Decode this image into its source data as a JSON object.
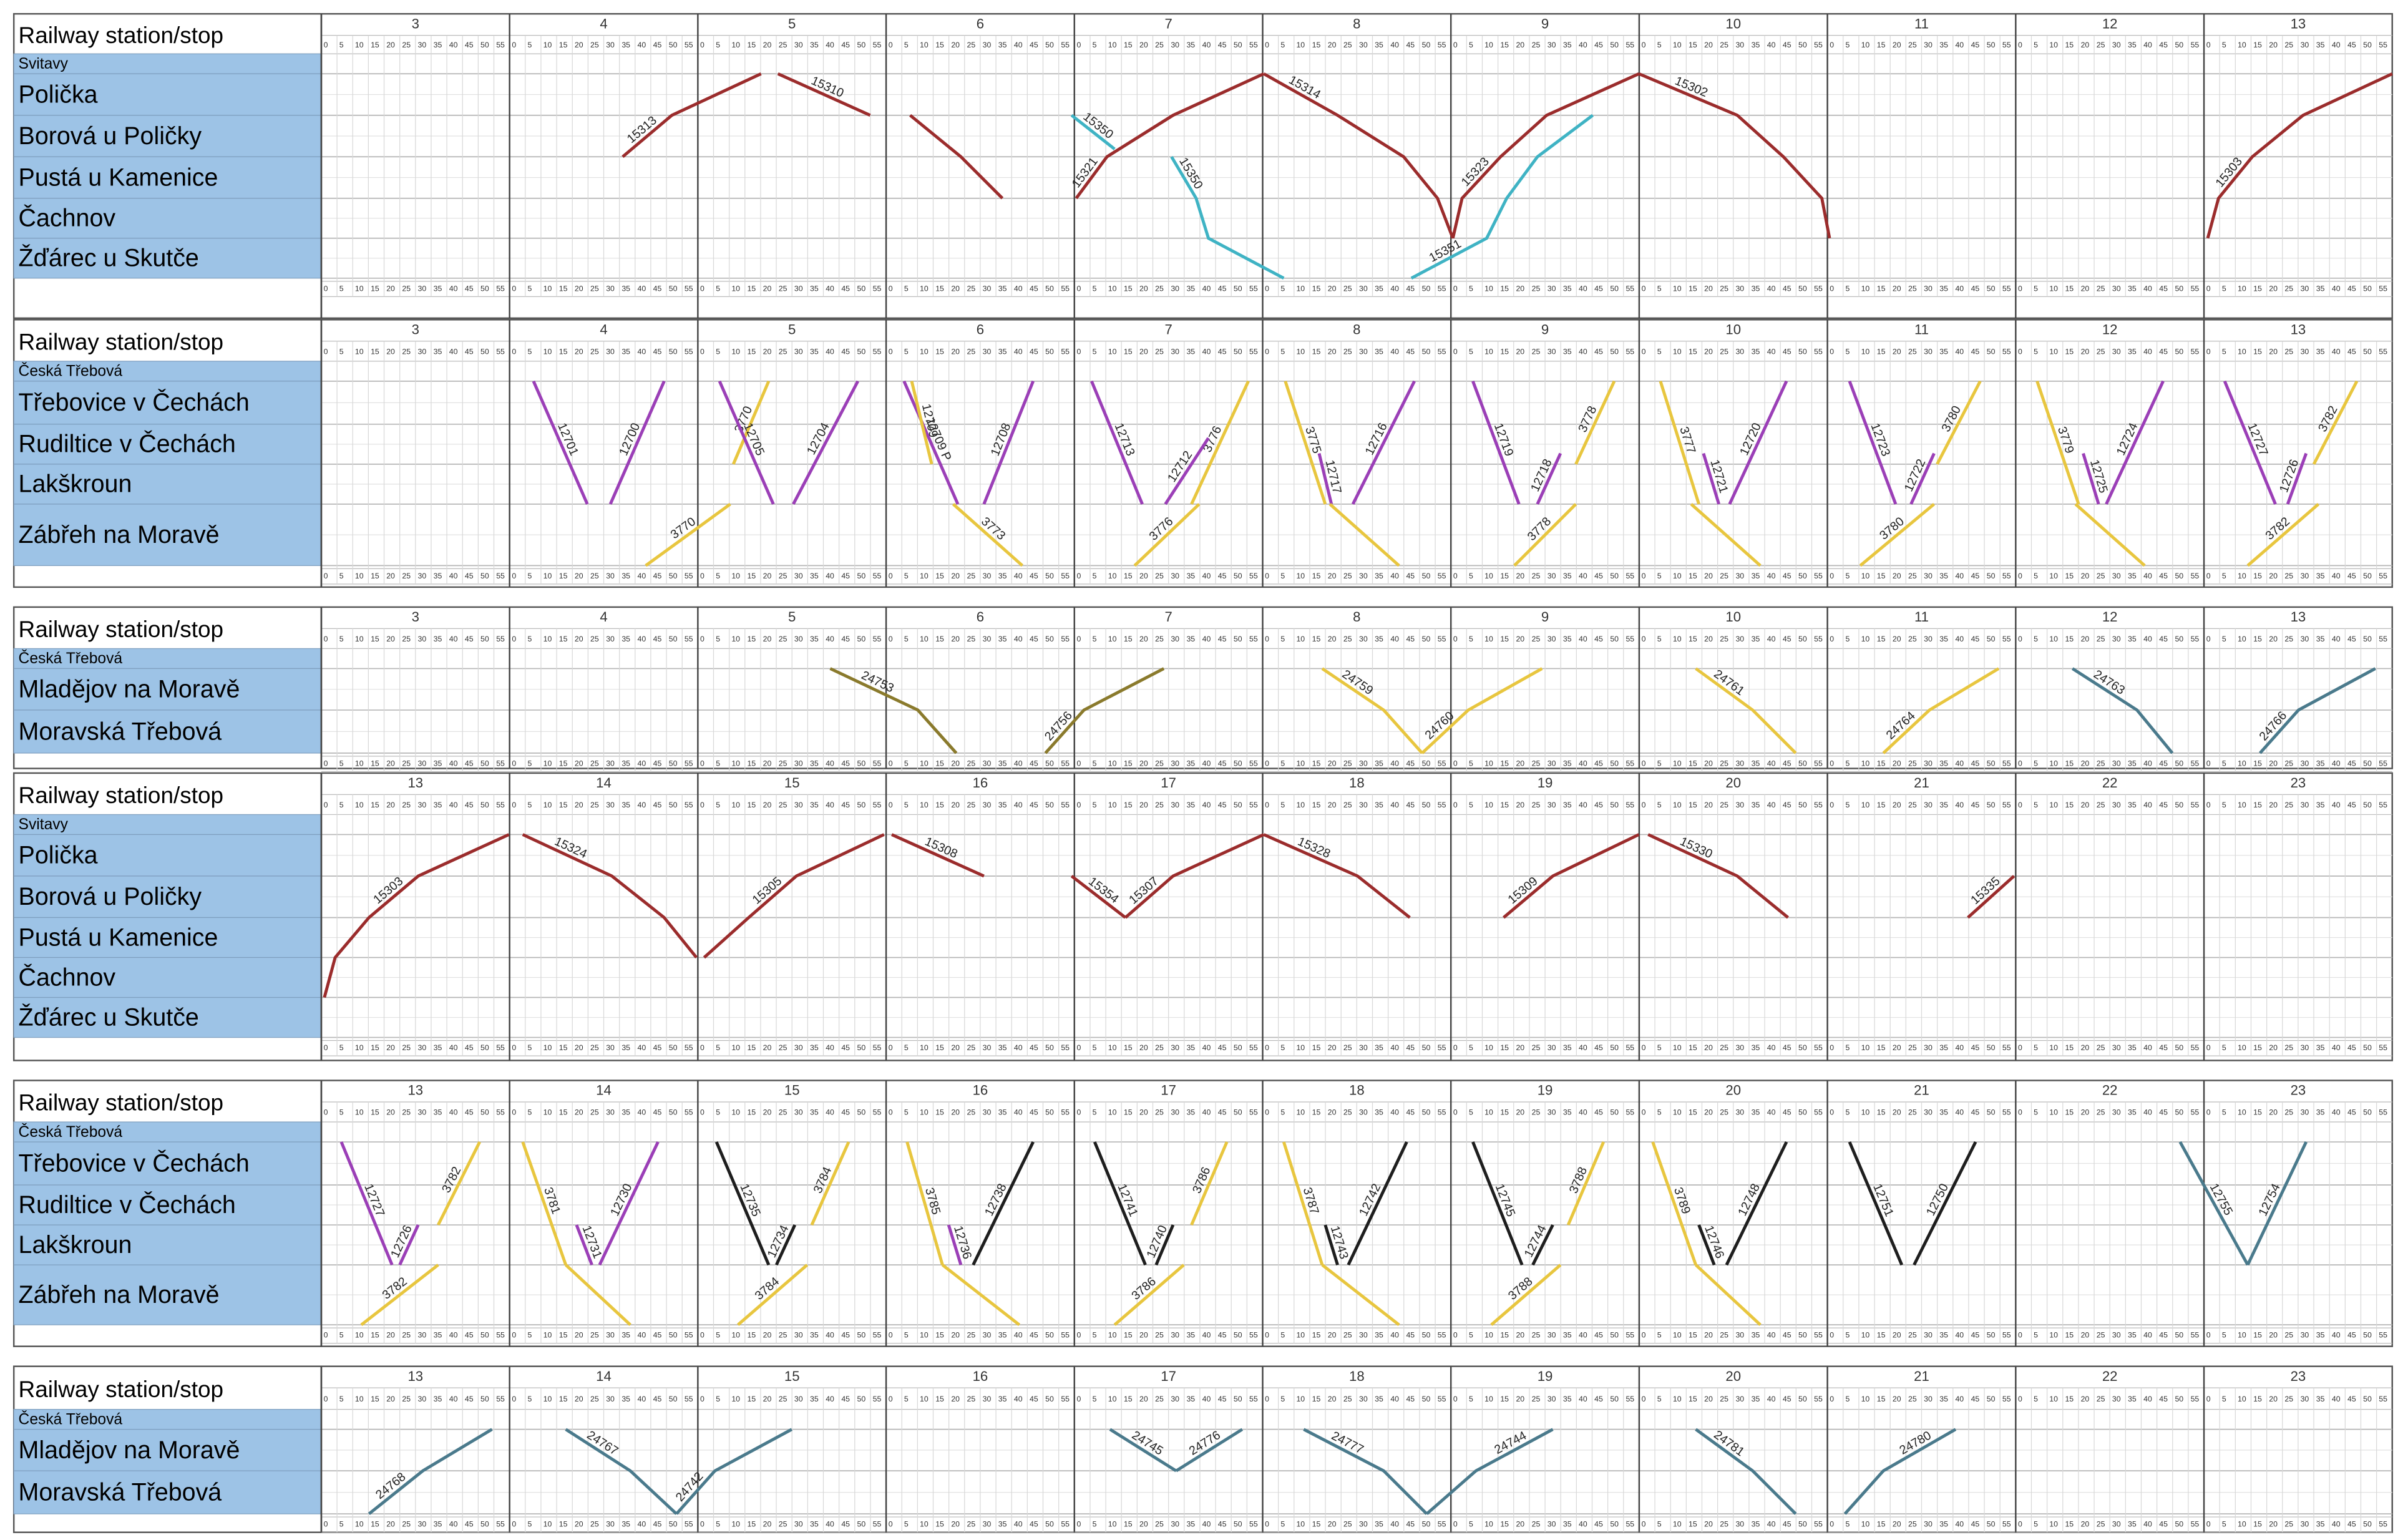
{
  "minutes": [
    0,
    5,
    10,
    15,
    20,
    25,
    30,
    35,
    40,
    45,
    50,
    55
  ],
  "panels": [
    {
      "header": "Railway station/stop",
      "first_station": "Svitavy",
      "stations": [
        "Polička",
        "Borová u Poličky",
        "Pustá u Kamenice",
        "Čachnov",
        "Žďárec u Skutče"
      ],
      "hours": [
        3,
        4,
        5,
        6,
        7,
        8,
        9,
        10,
        11,
        12,
        13
      ],
      "trains": [
        "15313",
        "15310",
        "15350",
        "15321",
        "15350",
        "15314",
        "15323",
        "15351",
        "15302",
        "15303"
      ]
    },
    {
      "header": "Railway station/stop",
      "first_station": "Česká Třebová",
      "stations": [
        "Třebovice v Čechách",
        "Rudiltice v Čechách",
        "Lakškroun",
        "Zábřeh na Moravě"
      ],
      "hours": [
        3,
        4,
        5,
        6,
        7,
        8,
        9,
        10,
        11,
        12,
        13
      ],
      "trains": [
        "12701",
        "12700",
        "3770",
        "3770",
        "12704",
        "12705",
        "12709 P",
        "12709",
        "12708",
        "3773",
        "12713",
        "3776",
        "12712",
        "3776",
        "3775",
        "12716",
        "12717",
        "12719",
        "3778",
        "12718",
        "3778",
        "3777",
        "12720",
        "12721",
        "12723",
        "3780",
        "12722",
        "3780",
        "3779",
        "12724",
        "12725",
        "12727",
        "3782",
        "12726",
        "3782"
      ]
    },
    {
      "header": "Railway station/stop",
      "first_station": "Česká Třebová",
      "stations": [
        "Mladějov na Moravě",
        "Moravská Třebová"
      ],
      "hours": [
        3,
        4,
        5,
        6,
        7,
        8,
        9,
        10,
        11,
        12,
        13
      ],
      "trains": [
        "24753",
        "24756",
        "24759",
        "24760",
        "24761",
        "24764",
        "24763",
        "24766"
      ]
    },
    {
      "header": "Railway station/stop",
      "first_station": "Svitavy",
      "stations": [
        "Polička",
        "Borová u Poličky",
        "Pustá u Kamenice",
        "Čachnov",
        "Žďárec u Skutče"
      ],
      "hours": [
        13,
        14,
        15,
        16,
        17,
        18,
        19,
        20,
        21,
        22,
        23
      ],
      "trains": [
        "15303",
        "15324",
        "15305",
        "15308",
        "15354",
        "15307",
        "15328",
        "15309",
        "15330",
        "15335"
      ]
    },
    {
      "header": "Railway station/stop",
      "first_station": "Česká Třebová",
      "stations": [
        "Třebovice v Čechách",
        "Rudiltice v Čechách",
        "Lakškroun",
        "Zábřeh na Moravě"
      ],
      "hours": [
        13,
        14,
        15,
        16,
        17,
        18,
        19,
        20,
        21,
        22,
        23
      ],
      "trains": [
        "12727",
        "3782",
        "12726",
        "3782",
        "3781",
        "12730",
        "12731",
        "12735",
        "3784",
        "12734",
        "3784",
        "3785",
        "12738",
        "12736",
        "12741",
        "3786",
        "12740",
        "3786",
        "3787",
        "12742",
        "12743",
        "12745",
        "3788",
        "12744",
        "3788",
        "3789",
        "12748",
        "12746",
        "12751",
        "12750",
        "12755",
        "12754"
      ]
    },
    {
      "header": "Railway station/stop",
      "first_station": "Česká Třebová",
      "stations": [
        "Mladějov na Moravě",
        "Moravská Třebová"
      ],
      "hours": [
        13,
        14,
        15,
        16,
        17,
        18,
        19,
        20,
        21,
        22,
        23
      ],
      "trains": [
        "24768",
        "24767",
        "24742",
        "24745",
        "24776",
        "24777",
        "24744",
        "24781",
        "24780"
      ]
    }
  ]
}
